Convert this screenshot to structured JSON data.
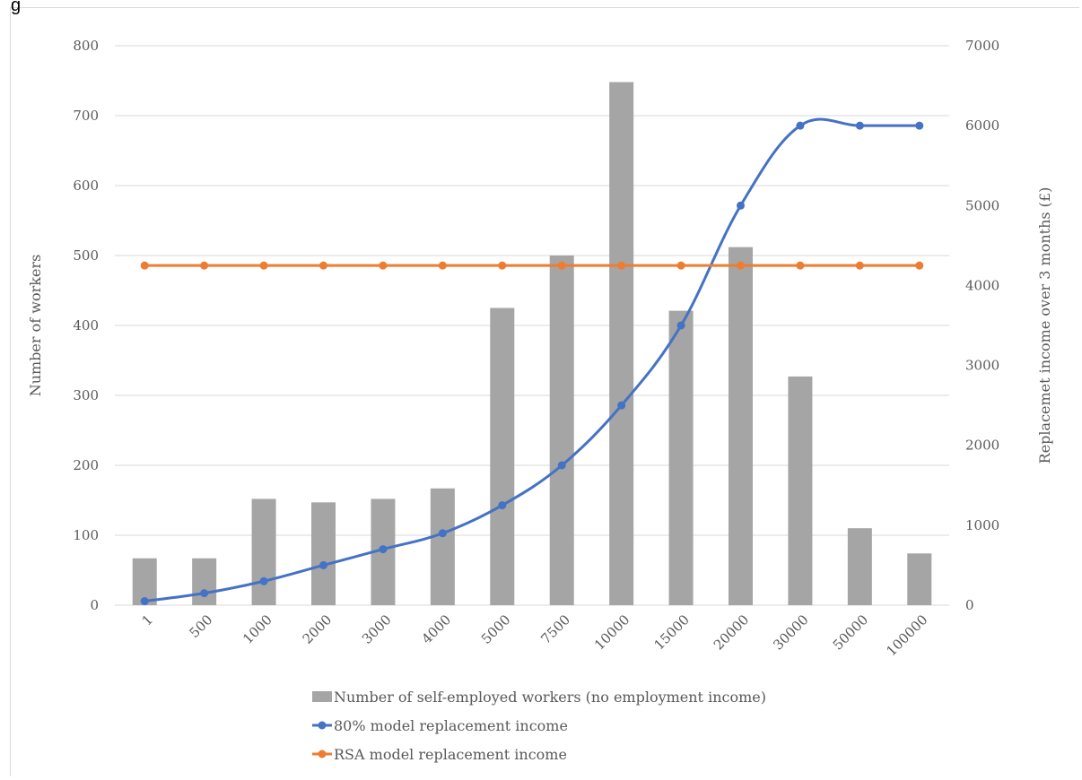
{
  "header_fragment": "g",
  "chart_data": {
    "type": "bar+line",
    "categories": [
      "1",
      "500",
      "1000",
      "2000",
      "3000",
      "4000",
      "5000",
      "7500",
      "10000",
      "15000",
      "20000",
      "30000",
      "50000",
      "100000"
    ],
    "series": [
      {
        "name": "Number of self-employed workers (no employment income)",
        "type": "bar",
        "axis": "left",
        "color": "#a5a5a5",
        "values": [
          67,
          67,
          152,
          147,
          152,
          167,
          425,
          500,
          748,
          421,
          512,
          327,
          110,
          74
        ]
      },
      {
        "name": "80% model replacement income",
        "type": "line",
        "axis": "right",
        "color": "#4472c4",
        "values": [
          50,
          150,
          300,
          500,
          700,
          900,
          1250,
          1750,
          2500,
          3500,
          5000,
          6000,
          6000,
          6000
        ]
      },
      {
        "name": "RSA model replacement income",
        "type": "line",
        "axis": "right",
        "color": "#ed7d31",
        "values": [
          4250,
          4250,
          4250,
          4250,
          4250,
          4250,
          4250,
          4250,
          4250,
          4250,
          4250,
          4250,
          4250,
          4250
        ]
      }
    ],
    "ylabel": "Number of workers",
    "y2label": "Replacemet income over 3 months (£)",
    "ylim": [
      0,
      800
    ],
    "y2lim": [
      0,
      7000
    ],
    "yticks": [
      "0",
      "100",
      "200",
      "300",
      "400",
      "500",
      "600",
      "700",
      "800"
    ],
    "y2ticks": [
      "0",
      "1000",
      "2000",
      "3000",
      "4000",
      "5000",
      "6000",
      "7000"
    ],
    "grid": true,
    "legend_position": "bottom"
  }
}
